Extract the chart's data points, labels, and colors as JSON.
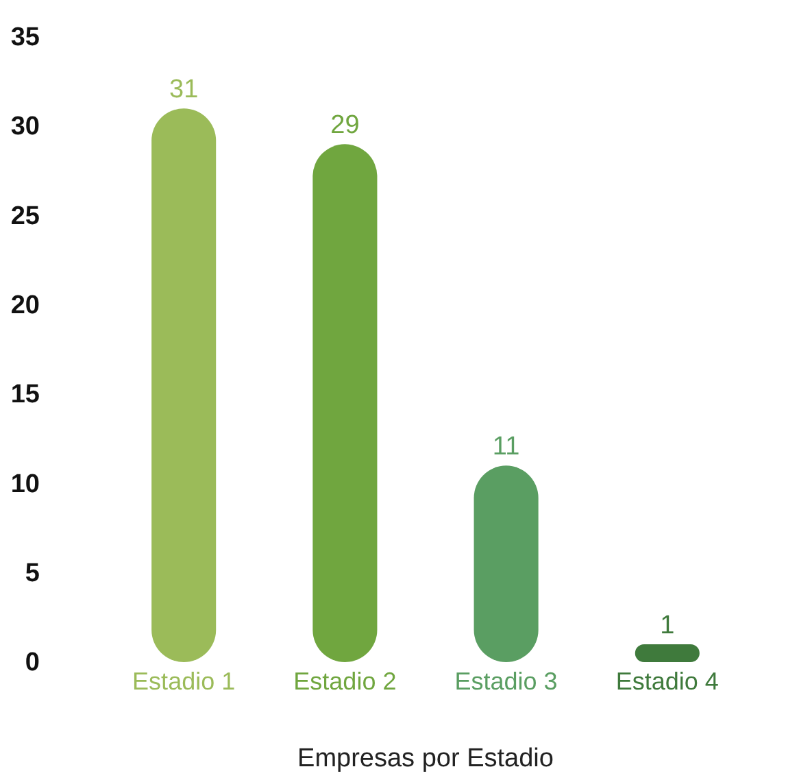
{
  "chart_data": {
    "type": "bar",
    "xlabel": "Empresas por Estadio",
    "categories": [
      "Estadio 1",
      "Estadio 2",
      "Estadio 3",
      "Estadio 4"
    ],
    "values": [
      31,
      29,
      11,
      1
    ],
    "colors": [
      "#9bbb59",
      "#70a63f",
      "#5a9e62",
      "#3f7a3c"
    ],
    "ylim": [
      0,
      35
    ],
    "yticks": [
      0,
      5,
      10,
      15,
      20,
      25,
      30,
      35
    ],
    "data_labels": true,
    "grid": false
  }
}
